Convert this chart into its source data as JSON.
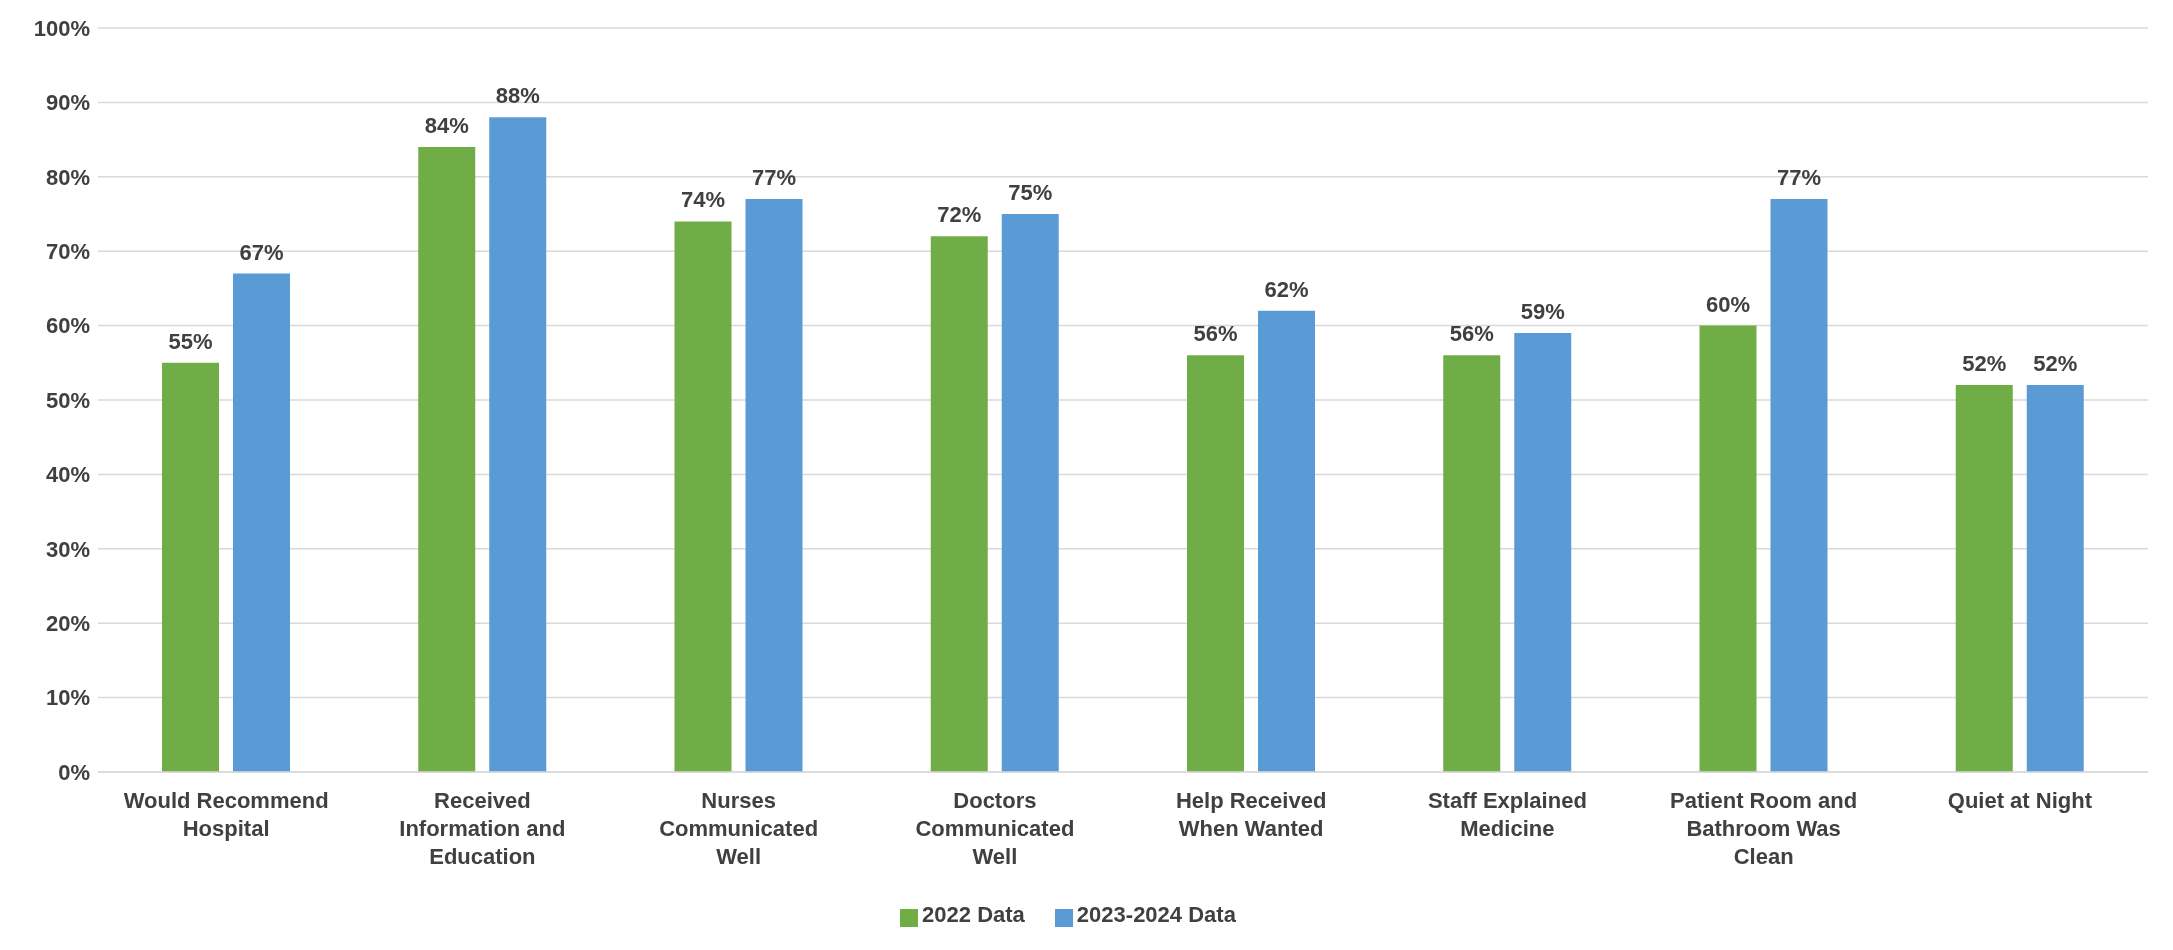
{
  "chart_data": {
    "type": "bar",
    "categories": [
      "Would Recommend Hospital",
      "Received Information and Education",
      "Nurses Communicated Well",
      "Doctors Communicated Well",
      "Help Received When Wanted",
      "Staff Explained Medicine",
      "Patient Room and Bathroom Was Clean",
      "Quiet at Night"
    ],
    "series": [
      {
        "name": "2022 Data",
        "color": "#70ad47",
        "values": [
          55,
          84,
          74,
          72,
          56,
          56,
          60,
          52
        ],
        "value_labels": [
          "55%",
          "84%",
          "74%",
          "72%",
          "56%",
          "56%",
          "60%",
          "52%"
        ]
      },
      {
        "name": "2023-2024 Data",
        "color": "#5b9bd5",
        "values": [
          67,
          88,
          77,
          75,
          62,
          59,
          77,
          52
        ],
        "value_labels": [
          "67%",
          "88%",
          "77%",
          "75%",
          "62%",
          "59%",
          "77%",
          "52%"
        ]
      }
    ],
    "ylim": [
      0,
      100
    ],
    "yticks": [
      {
        "value": 0,
        "label": "0%"
      },
      {
        "value": 10,
        "label": "10%"
      },
      {
        "value": 20,
        "label": "20%"
      },
      {
        "value": 30,
        "label": "30%"
      },
      {
        "value": 40,
        "label": "40%"
      },
      {
        "value": 50,
        "label": "50%"
      },
      {
        "value": 60,
        "label": "60%"
      },
      {
        "value": 70,
        "label": "70%"
      },
      {
        "value": 80,
        "label": "80%"
      },
      {
        "value": 90,
        "label": "90%"
      },
      {
        "value": 100,
        "label": "100%"
      }
    ],
    "grid": "y",
    "legend": "bottom"
  }
}
